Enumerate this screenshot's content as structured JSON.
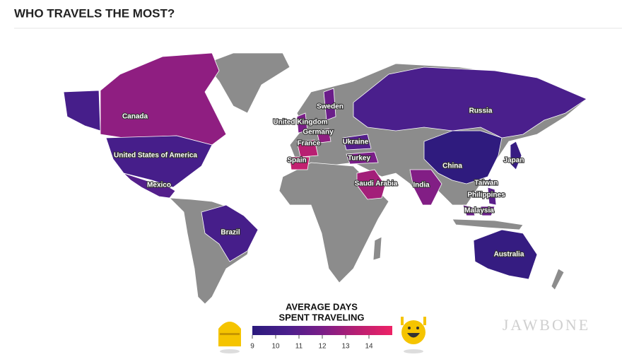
{
  "header": {
    "title": "WHO TRAVELS THE MOST?"
  },
  "chart_data": {
    "type": "choropleth",
    "legend_title": [
      "AVERAGE DAYS",
      "SPENT TRAVELING"
    ],
    "categories": [
      "Canada",
      "United States of America",
      "Mexico",
      "Brazil",
      "United Kingdom",
      "Sweden",
      "Germany",
      "France",
      "Spain",
      "Ukraine",
      "Turkey",
      "Saudi Arabia",
      "India",
      "Russia",
      "China",
      "Japan",
      "Taiwan",
      "Philippines",
      "Malaysia",
      "Australia"
    ],
    "values": [
      12.5,
      10.3,
      10.8,
      10.3,
      12,
      11.5,
      12.5,
      13.5,
      13.8,
      10.8,
      12,
      13,
      12.2,
      10.5,
      9.2,
      9.6,
      9.5,
      11,
      11.5,
      9.5
    ],
    "colorlim": [
      9,
      15
    ],
    "colorticks": [
      9,
      10,
      11,
      12,
      13,
      14
    ]
  },
  "watermark": "JAWBONE"
}
